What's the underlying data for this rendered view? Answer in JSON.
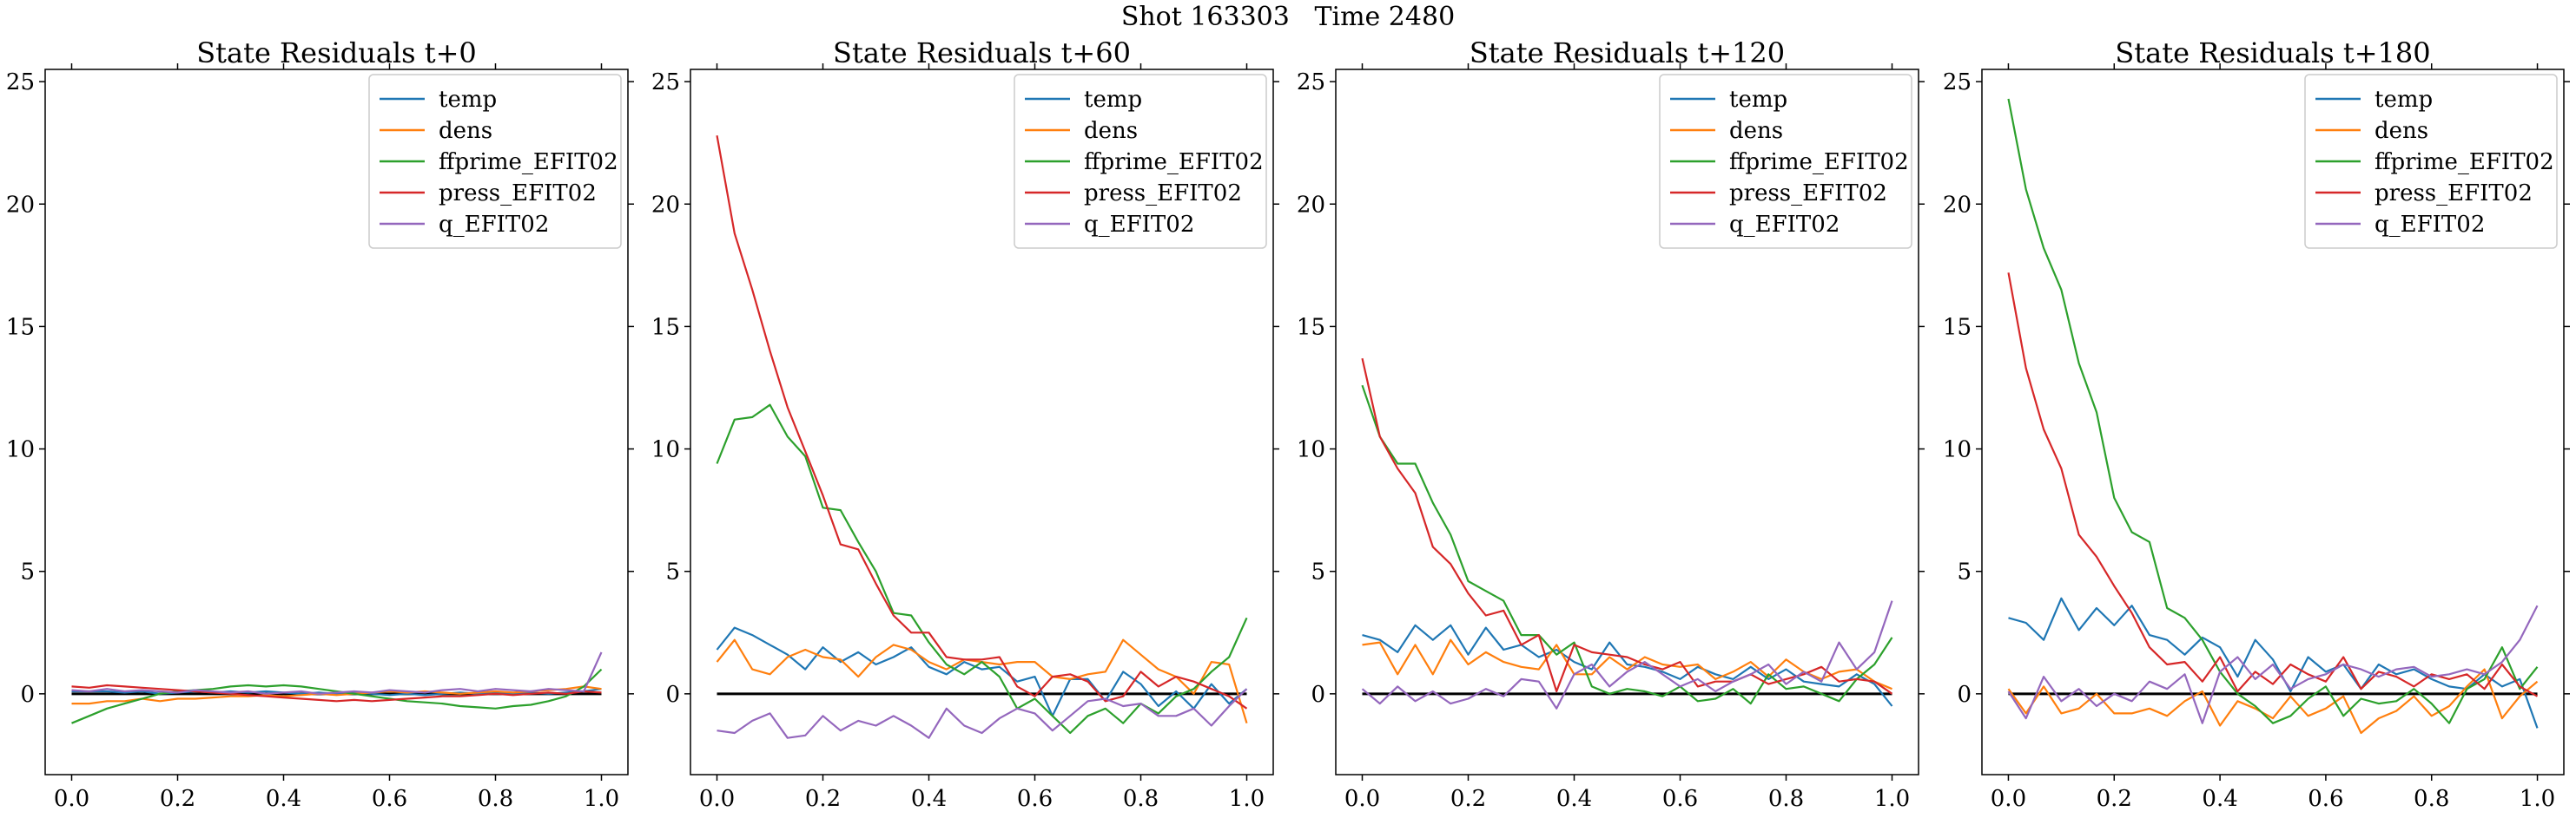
{
  "figure": {
    "title": "Shot 163303   Time 2480"
  },
  "chart_data": [
    {
      "type": "line",
      "title": "State Residuals t+0",
      "xlim": [
        -0.05,
        1.05
      ],
      "ylim": [
        -3.3,
        25.5
      ],
      "xticks": [
        0.0,
        0.2,
        0.4,
        0.6,
        0.8,
        1.0
      ],
      "xtick_labels": [
        "0.0",
        "0.2",
        "0.4",
        "0.6",
        "0.8",
        "1.0"
      ],
      "yticks": [
        0,
        5,
        10,
        15,
        20,
        25
      ],
      "ytick_labels": [
        "0",
        "5",
        "10",
        "15",
        "20",
        "25"
      ],
      "zero_line": true,
      "legend": "upper right",
      "x": [
        0.0,
        0.0333,
        0.0667,
        0.1,
        0.1333,
        0.1667,
        0.2,
        0.2333,
        0.2667,
        0.3,
        0.3333,
        0.3667,
        0.4,
        0.4333,
        0.4667,
        0.5,
        0.5333,
        0.5667,
        0.6,
        0.6333,
        0.6667,
        0.7,
        0.7333,
        0.7667,
        0.8,
        0.8333,
        0.8667,
        0.9,
        0.9333,
        0.9667,
        1.0
      ],
      "series": [
        {
          "name": "temp",
          "values": [
            0.1,
            0.1,
            0.1,
            0.05,
            0.1,
            0.0,
            0.05,
            0.1,
            0.05,
            0.1,
            0.05,
            0.1,
            0.05,
            0.0,
            0.05,
            0.0,
            0.05,
            0.0,
            -0.05,
            0.0,
            -0.05,
            0.0,
            0.05,
            0.0,
            0.05,
            0.0,
            0.05,
            0.0,
            0.05,
            0.1,
            0.2
          ]
        },
        {
          "name": "dens",
          "values": [
            -0.4,
            -0.4,
            -0.3,
            -0.3,
            -0.2,
            -0.3,
            -0.2,
            -0.2,
            -0.15,
            -0.1,
            -0.1,
            -0.05,
            -0.1,
            -0.05,
            0.0,
            -0.05,
            0.0,
            0.05,
            0.1,
            0.05,
            0.1,
            0.05,
            0.0,
            0.05,
            0.1,
            0.05,
            0.1,
            0.15,
            0.2,
            0.3,
            0.2
          ]
        },
        {
          "name": "ffprime_EFIT02",
          "values": [
            -1.2,
            -0.9,
            -0.6,
            -0.4,
            -0.2,
            0.0,
            0.1,
            0.15,
            0.2,
            0.3,
            0.35,
            0.3,
            0.35,
            0.3,
            0.2,
            0.1,
            0.0,
            -0.1,
            -0.2,
            -0.3,
            -0.35,
            -0.4,
            -0.5,
            -0.55,
            -0.6,
            -0.5,
            -0.45,
            -0.3,
            -0.1,
            0.3,
            1.0
          ]
        },
        {
          "name": "press_EFIT02",
          "values": [
            0.3,
            0.25,
            0.35,
            0.3,
            0.25,
            0.2,
            0.15,
            0.1,
            0.05,
            0.0,
            -0.05,
            -0.1,
            -0.15,
            -0.2,
            -0.25,
            -0.3,
            -0.25,
            -0.3,
            -0.25,
            -0.2,
            -0.15,
            -0.1,
            -0.1,
            -0.05,
            0.0,
            -0.05,
            0.0,
            0.05,
            0.0,
            0.1,
            0.05
          ]
        },
        {
          "name": "q_EFIT02",
          "values": [
            0.15,
            0.1,
            0.2,
            0.1,
            0.15,
            0.1,
            0.05,
            0.15,
            0.1,
            0.05,
            0.1,
            0.0,
            0.05,
            0.1,
            0.0,
            0.05,
            0.1,
            0.05,
            0.15,
            0.1,
            0.05,
            0.15,
            0.2,
            0.1,
            0.2,
            0.15,
            0.1,
            0.2,
            0.15,
            0.1,
            1.7
          ]
        }
      ]
    },
    {
      "type": "line",
      "title": "State Residuals t+60",
      "xlim": [
        -0.05,
        1.05
      ],
      "ylim": [
        -3.3,
        25.5
      ],
      "xticks": [
        0.0,
        0.2,
        0.4,
        0.6,
        0.8,
        1.0
      ],
      "xtick_labels": [
        "0.0",
        "0.2",
        "0.4",
        "0.6",
        "0.8",
        "1.0"
      ],
      "yticks": [
        0,
        5,
        10,
        15,
        20,
        25
      ],
      "ytick_labels": [
        "0",
        "5",
        "10",
        "15",
        "20",
        "25"
      ],
      "zero_line": true,
      "legend": "upper right",
      "x": [
        0.0,
        0.0333,
        0.0667,
        0.1,
        0.1333,
        0.1667,
        0.2,
        0.2333,
        0.2667,
        0.3,
        0.3333,
        0.3667,
        0.4,
        0.4333,
        0.4667,
        0.5,
        0.5333,
        0.5667,
        0.6,
        0.6333,
        0.6667,
        0.7,
        0.7333,
        0.7667,
        0.8,
        0.8333,
        0.8667,
        0.9,
        0.9333,
        0.9667,
        1.0
      ],
      "series": [
        {
          "name": "temp",
          "values": [
            1.8,
            2.7,
            2.4,
            2.0,
            1.6,
            1.0,
            1.9,
            1.3,
            1.7,
            1.2,
            1.5,
            1.9,
            1.1,
            0.8,
            1.3,
            1.0,
            1.1,
            0.5,
            0.7,
            -0.9,
            0.6,
            0.6,
            -0.3,
            0.9,
            0.4,
            -0.5,
            0.1,
            -0.6,
            0.4,
            -0.4,
            0.2
          ]
        },
        {
          "name": "dens",
          "values": [
            1.3,
            2.2,
            1.0,
            0.8,
            1.5,
            1.8,
            1.5,
            1.4,
            0.7,
            1.5,
            2.0,
            1.8,
            1.3,
            1.0,
            1.4,
            1.3,
            1.2,
            1.3,
            1.3,
            0.7,
            0.6,
            0.8,
            0.9,
            2.2,
            1.6,
            1.0,
            0.7,
            0.0,
            1.3,
            1.2,
            -1.2
          ]
        },
        {
          "name": "ffprime_EFIT02",
          "values": [
            9.4,
            11.2,
            11.3,
            11.8,
            10.5,
            9.7,
            7.6,
            7.5,
            6.2,
            5.0,
            3.3,
            3.2,
            2.1,
            1.2,
            0.8,
            1.3,
            0.7,
            -0.6,
            -0.2,
            -0.9,
            -1.6,
            -0.9,
            -0.6,
            -1.2,
            -0.4,
            -0.8,
            -0.1,
            0.2,
            0.9,
            1.5,
            3.1
          ]
        },
        {
          "name": "press_EFIT02",
          "values": [
            22.8,
            18.8,
            16.5,
            14.0,
            11.7,
            9.9,
            8.1,
            6.1,
            5.9,
            4.5,
            3.2,
            2.5,
            2.5,
            1.5,
            1.4,
            1.4,
            1.5,
            0.3,
            -0.1,
            0.7,
            0.8,
            0.5,
            -0.3,
            -0.1,
            0.9,
            0.3,
            0.7,
            0.5,
            0.2,
            -0.1,
            -0.6
          ]
        },
        {
          "name": "q_EFIT02",
          "values": [
            -1.5,
            -1.6,
            -1.1,
            -0.8,
            -1.8,
            -1.7,
            -0.9,
            -1.5,
            -1.1,
            -1.3,
            -0.9,
            -1.3,
            -1.8,
            -0.6,
            -1.3,
            -1.6,
            -1.0,
            -0.6,
            -0.8,
            -1.5,
            -0.9,
            -0.3,
            -0.2,
            -0.5,
            -0.4,
            -0.9,
            -0.9,
            -0.6,
            -1.3,
            -0.5,
            0.2
          ]
        }
      ]
    },
    {
      "type": "line",
      "title": "State Residuals t+120",
      "xlim": [
        -0.05,
        1.05
      ],
      "ylim": [
        -3.3,
        25.5
      ],
      "xticks": [
        0.0,
        0.2,
        0.4,
        0.6,
        0.8,
        1.0
      ],
      "xtick_labels": [
        "0.0",
        "0.2",
        "0.4",
        "0.6",
        "0.8",
        "1.0"
      ],
      "yticks": [
        0,
        5,
        10,
        15,
        20,
        25
      ],
      "ytick_labels": [
        "0",
        "5",
        "10",
        "15",
        "20",
        "25"
      ],
      "zero_line": true,
      "legend": "upper right",
      "x": [
        0.0,
        0.0333,
        0.0667,
        0.1,
        0.1333,
        0.1667,
        0.2,
        0.2333,
        0.2667,
        0.3,
        0.3333,
        0.3667,
        0.4,
        0.4333,
        0.4667,
        0.5,
        0.5333,
        0.5667,
        0.6,
        0.6333,
        0.6667,
        0.7,
        0.7333,
        0.7667,
        0.8,
        0.8333,
        0.8667,
        0.9,
        0.9333,
        0.9667,
        1.0
      ],
      "series": [
        {
          "name": "temp",
          "values": [
            2.4,
            2.2,
            1.7,
            2.8,
            2.2,
            2.8,
            1.6,
            2.7,
            1.8,
            2.0,
            1.5,
            1.8,
            1.3,
            1.0,
            2.1,
            1.2,
            1.1,
            0.9,
            0.6,
            1.1,
            0.8,
            0.6,
            1.1,
            0.6,
            1.0,
            0.5,
            0.4,
            0.3,
            0.8,
            0.4,
            -0.5
          ]
        },
        {
          "name": "dens",
          "values": [
            2.0,
            2.1,
            0.8,
            2.0,
            0.8,
            2.2,
            1.2,
            1.7,
            1.3,
            1.1,
            1.0,
            2.0,
            0.8,
            0.8,
            1.5,
            1.0,
            1.5,
            1.2,
            1.1,
            1.2,
            0.6,
            0.9,
            1.3,
            0.7,
            1.4,
            0.9,
            0.6,
            0.9,
            1.0,
            0.5,
            0.2
          ]
        },
        {
          "name": "ffprime_EFIT02",
          "values": [
            12.6,
            10.5,
            9.4,
            9.4,
            7.8,
            6.5,
            4.6,
            4.2,
            3.8,
            2.4,
            2.4,
            1.6,
            2.1,
            0.3,
            0.0,
            0.2,
            0.1,
            -0.1,
            0.3,
            -0.3,
            -0.2,
            0.2,
            -0.4,
            0.8,
            0.2,
            0.3,
            0.0,
            -0.3,
            0.6,
            1.2,
            2.3
          ]
        },
        {
          "name": "press_EFIT02",
          "values": [
            13.7,
            10.5,
            9.2,
            8.2,
            6.0,
            5.3,
            4.1,
            3.2,
            3.4,
            2.0,
            2.4,
            0.1,
            2.0,
            1.7,
            1.6,
            1.5,
            1.2,
            1.0,
            1.3,
            0.3,
            0.5,
            0.5,
            0.8,
            0.4,
            0.6,
            0.8,
            1.1,
            0.5,
            0.6,
            0.5,
            0.0
          ]
        },
        {
          "name": "q_EFIT02",
          "values": [
            0.2,
            -0.4,
            0.3,
            -0.3,
            0.1,
            -0.4,
            -0.2,
            0.2,
            -0.1,
            0.6,
            0.5,
            -0.6,
            0.8,
            1.2,
            0.3,
            0.9,
            1.3,
            0.8,
            0.3,
            0.6,
            0.1,
            0.5,
            0.8,
            1.2,
            0.4,
            0.9,
            0.5,
            2.1,
            1.0,
            1.7,
            3.8
          ]
        }
      ]
    },
    {
      "type": "line",
      "title": "State Residuals t+180",
      "xlim": [
        -0.05,
        1.05
      ],
      "ylim": [
        -3.3,
        25.5
      ],
      "xticks": [
        0.0,
        0.2,
        0.4,
        0.6,
        0.8,
        1.0
      ],
      "xtick_labels": [
        "0.0",
        "0.2",
        "0.4",
        "0.6",
        "0.8",
        "1.0"
      ],
      "yticks": [
        0,
        5,
        10,
        15,
        20,
        25
      ],
      "ytick_labels": [
        "0",
        "5",
        "10",
        "15",
        "20",
        "25"
      ],
      "zero_line": true,
      "legend": "upper right",
      "x": [
        0.0,
        0.0333,
        0.0667,
        0.1,
        0.1333,
        0.1667,
        0.2,
        0.2333,
        0.2667,
        0.3,
        0.3333,
        0.3667,
        0.4,
        0.4333,
        0.4667,
        0.5,
        0.5333,
        0.5667,
        0.6,
        0.6333,
        0.6667,
        0.7,
        0.7333,
        0.7667,
        0.8,
        0.8333,
        0.8667,
        0.9,
        0.9333,
        0.9667,
        1.0
      ],
      "series": [
        {
          "name": "temp",
          "values": [
            3.1,
            2.9,
            2.2,
            3.9,
            2.6,
            3.5,
            2.8,
            3.6,
            2.4,
            2.2,
            1.6,
            2.3,
            1.9,
            0.7,
            2.2,
            1.4,
            0.1,
            1.5,
            0.9,
            1.2,
            0.2,
            1.2,
            0.8,
            1.0,
            0.6,
            0.3,
            0.2,
            0.8,
            0.3,
            0.6,
            -1.4
          ]
        },
        {
          "name": "dens",
          "values": [
            0.2,
            -0.8,
            0.3,
            -0.8,
            -0.6,
            0.0,
            -0.8,
            -0.8,
            -0.6,
            -0.9,
            -0.3,
            0.1,
            -1.3,
            -0.3,
            -0.6,
            -1.0,
            -0.1,
            -0.9,
            -0.6,
            -0.1,
            -1.6,
            -1.0,
            -0.7,
            -0.1,
            -0.9,
            -0.5,
            0.3,
            1.0,
            -1.0,
            -0.1,
            0.5
          ]
        },
        {
          "name": "ffprime_EFIT02",
          "values": [
            24.3,
            20.6,
            18.2,
            16.5,
            13.5,
            11.5,
            8.0,
            6.6,
            6.2,
            3.5,
            3.1,
            2.2,
            0.9,
            0.0,
            -0.5,
            -1.2,
            -0.9,
            -0.2,
            0.3,
            -0.9,
            -0.2,
            -0.4,
            -0.3,
            0.2,
            -0.4,
            -1.2,
            0.2,
            0.6,
            1.9,
            0.2,
            1.1
          ]
        },
        {
          "name": "press_EFIT02",
          "values": [
            17.2,
            13.3,
            10.8,
            9.2,
            6.5,
            5.6,
            4.4,
            3.3,
            1.9,
            1.2,
            1.3,
            0.5,
            1.5,
            0.1,
            0.9,
            0.4,
            1.2,
            0.8,
            0.5,
            1.5,
            0.2,
            0.9,
            0.7,
            0.3,
            0.8,
            0.6,
            0.8,
            0.2,
            1.2,
            0.3,
            -0.1
          ]
        },
        {
          "name": "q_EFIT02",
          "values": [
            0.1,
            -1.0,
            0.7,
            -0.3,
            0.2,
            -0.5,
            0.0,
            -0.3,
            0.5,
            0.2,
            0.8,
            -1.2,
            0.9,
            1.5,
            0.6,
            1.2,
            0.2,
            0.6,
            0.8,
            1.2,
            1.0,
            0.7,
            1.0,
            1.1,
            0.7,
            0.8,
            1.0,
            0.8,
            1.3,
            2.2,
            3.6
          ]
        }
      ]
    }
  ],
  "colors": {
    "temp": "#1f77b4",
    "dens": "#ff7f0e",
    "ffprime_EFIT02": "#2ca02c",
    "press_EFIT02": "#d62728",
    "q_EFIT02": "#9467bd",
    "zero_line": "#000000"
  }
}
